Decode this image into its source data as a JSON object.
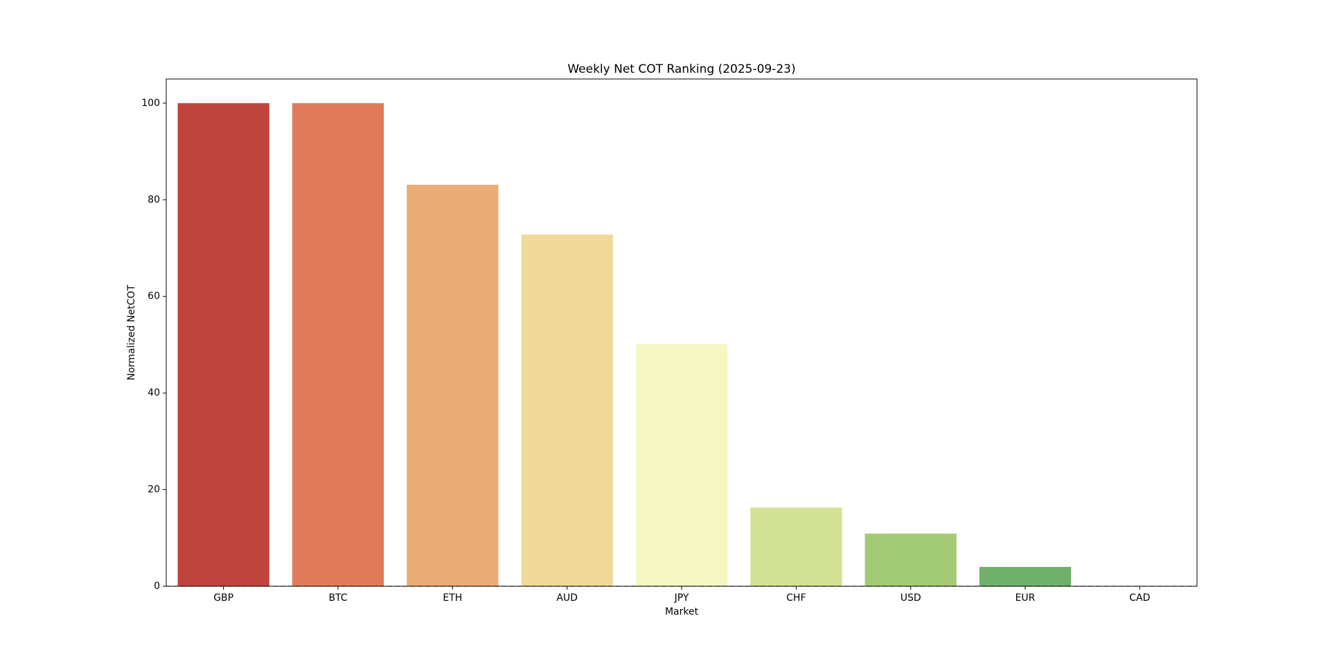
{
  "chart_data": {
    "type": "bar",
    "title": "Weekly Net COT Ranking (2025-09-23)",
    "x_label": "Market",
    "y_label": "Normalized NetCOT",
    "categories": [
      "GBP",
      "BTC",
      "ETH",
      "AUD",
      "JPY",
      "CHF",
      "USD",
      "EUR",
      "CAD"
    ],
    "values": [
      100,
      100,
      83.1,
      72.8,
      50.1,
      16.3,
      10.9,
      4.0,
      0
    ],
    "colors": [
      "#c0443e",
      "#df7b5b",
      "#e9ad75",
      "#f0d999",
      "#f5f7c3",
      "#d4e295",
      "#a3cb76",
      "#6fb16b",
      "#2e8b4c"
    ],
    "ylim": [
      0,
      105
    ],
    "yticks": [
      0,
      20,
      40,
      60,
      80,
      100
    ],
    "hline": 0
  }
}
